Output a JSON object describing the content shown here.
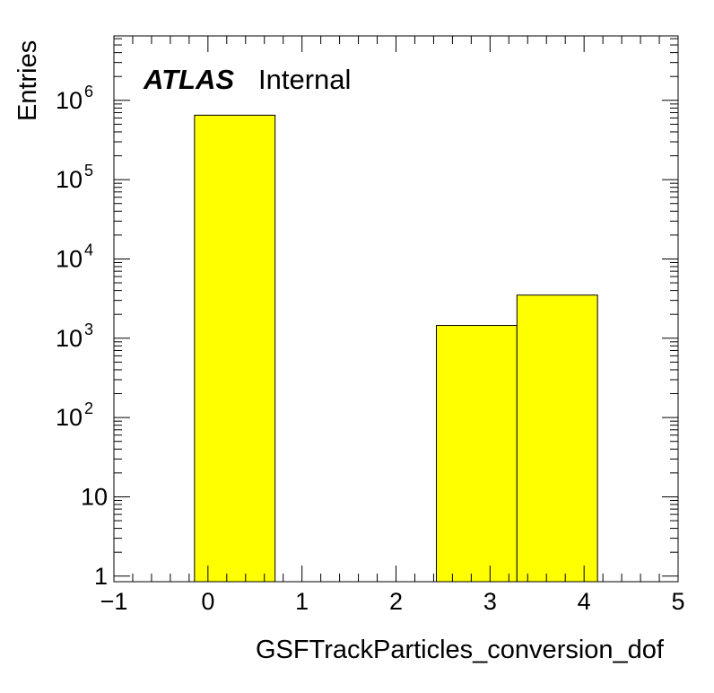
{
  "chart_data": {
    "type": "bar",
    "histogram": true,
    "xlabel": "GSFTrackParticles_conversion_dof",
    "ylabel": "Entries",
    "xlim": [
      -1,
      5
    ],
    "ylim": [
      0.85,
      6500000
    ],
    "log_y": true,
    "x_ticks": [
      -1,
      0,
      1,
      2,
      3,
      4,
      5
    ],
    "x_tick_labels": [
      "−1",
      "0",
      "1",
      "2",
      "3",
      "4",
      "5"
    ],
    "y_ticks": [
      {
        "value": 1,
        "base": "1",
        "exp": ""
      },
      {
        "value": 10,
        "base": "10",
        "exp": ""
      },
      {
        "value": 100,
        "base": "10",
        "exp": "2"
      },
      {
        "value": 1000,
        "base": "10",
        "exp": "3"
      },
      {
        "value": 10000,
        "base": "10",
        "exp": "4"
      },
      {
        "value": 100000,
        "base": "10",
        "exp": "5"
      },
      {
        "value": 1000000,
        "base": "10",
        "exp": "6"
      }
    ],
    "bins": [
      {
        "low": -0.143,
        "high": 0.714,
        "value": 650000
      },
      {
        "low": 2.429,
        "high": 3.286,
        "value": 1450
      },
      {
        "low": 3.286,
        "high": 4.143,
        "value": 3500
      }
    ],
    "fill_color": "#ffff00",
    "line_color": "#000000",
    "grid": false,
    "legend": "none"
  },
  "labels": {
    "atlas": "ATLAS",
    "internal": "Internal"
  }
}
